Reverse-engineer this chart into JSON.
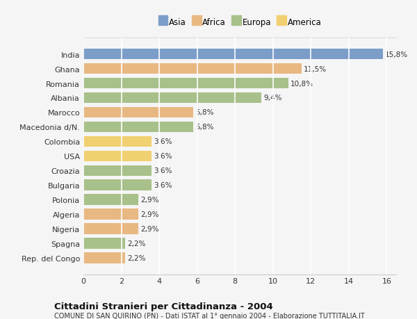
{
  "countries": [
    "Rep. del Congo",
    "Spagna",
    "Nigeria",
    "Algeria",
    "Polonia",
    "Bulgaria",
    "Croazia",
    "USA",
    "Colombia",
    "Macedonia d/N.",
    "Marocco",
    "Albania",
    "Romania",
    "Ghana",
    "India"
  ],
  "values": [
    2.2,
    2.2,
    2.9,
    2.9,
    2.9,
    3.6,
    3.6,
    3.6,
    3.6,
    5.8,
    5.8,
    9.4,
    10.8,
    11.5,
    15.8
  ],
  "labels": [
    "2,2%",
    "2,2%",
    "2,9%",
    "2,9%",
    "2,9%",
    "3,6%",
    "3,6%",
    "3,6%",
    "3,6%",
    "5,8%",
    "5,8%",
    "9,4%",
    "10,8%",
    "11,5%",
    "15,8%"
  ],
  "colors": [
    "#e8b882",
    "#a8c08a",
    "#e8b882",
    "#e8b882",
    "#a8c08a",
    "#a8c08a",
    "#a8c08a",
    "#f0d070",
    "#f0d070",
    "#a8c08a",
    "#e8b882",
    "#a8c08a",
    "#a8c08a",
    "#e8b882",
    "#7b9dc8"
  ],
  "legend_labels": [
    "Asia",
    "Africa",
    "Europa",
    "America"
  ],
  "legend_colors": [
    "#7b9dc8",
    "#e8b882",
    "#a8c08a",
    "#f0d070"
  ],
  "title": "Cittadini Stranieri per Cittadinanza - 2004",
  "subtitle": "COMUNE DI SAN QUIRINO (PN) - Dati ISTAT al 1° gennaio 2004 - Elaborazione TUTTITALIA.IT",
  "xlim": [
    0,
    16.5
  ],
  "xticks": [
    0,
    2,
    4,
    6,
    8,
    10,
    12,
    14,
    16
  ],
  "background_color": "#f5f5f5",
  "plot_bg_color": "#f5f5f5",
  "grid_color": "#ffffff",
  "bar_height": 0.75,
  "label_fontsize": 7.5,
  "tick_fontsize": 8,
  "title_fontsize": 9.5,
  "subtitle_fontsize": 7
}
